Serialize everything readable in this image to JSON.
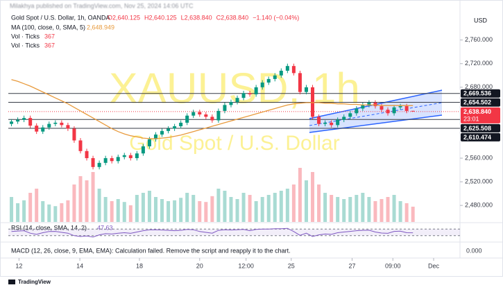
{
  "header": {
    "published": "Milakhya published on TradingView.com, Nov 25, 2024 14:06 UTC",
    "brand": "TradingView"
  },
  "chart_data": {
    "type": "candlestick",
    "title": "Gold Spot / U.S. Dollar, 1h, OANDA",
    "ohlc_legend": [
      "O2,640.125",
      "H2,640.125",
      "L2,638.840",
      "C2,638.840",
      "−1.140 (−0.04%)"
    ],
    "watermark": "XAUUSD, 1h",
    "watermark_subtitle": "Gold Spot / U.S. Dollar",
    "currency": "USD",
    "up_color": "#089981",
    "down_color": "#f23645",
    "categories": [
      null,
      null,
      null,
      null,
      null,
      null,
      null,
      null,
      null,
      null,
      null,
      null,
      null,
      null,
      null,
      null,
      null,
      null,
      null,
      null,
      null,
      null,
      null,
      null,
      null,
      null,
      null,
      null,
      null,
      null,
      null,
      null,
      null,
      null,
      null,
      null,
      null,
      null,
      null,
      null,
      null,
      null,
      null,
      null,
      null,
      null,
      null,
      null,
      null,
      null,
      null,
      null,
      null,
      null,
      null,
      null,
      null,
      null,
      null,
      null,
      null,
      null,
      null,
      null,
      null
    ],
    "open": [
      2618,
      2622,
      2625,
      2628,
      2615,
      2605,
      2612,
      2618,
      2620,
      2616,
      2610,
      2590,
      2572,
      2560,
      2545,
      2552,
      2560,
      2555,
      2562,
      2565,
      2560,
      2568,
      2580,
      2592,
      2600,
      2606,
      2610,
      2614,
      2620,
      2632,
      2638,
      2634,
      2630,
      2624,
      2640,
      2650,
      2655,
      2662,
      2670,
      2668,
      2680,
      2688,
      2694,
      2700,
      2708,
      2716,
      2704,
      2672,
      2680,
      2630,
      2618,
      2620,
      2616,
      2625,
      2630,
      2636,
      2644,
      2650,
      2654,
      2648,
      2642,
      2636,
      2646,
      2648,
      2640.125
    ],
    "high": [
      2626,
      2629,
      2632,
      2632,
      2619,
      2616,
      2622,
      2624,
      2624,
      2620,
      2614,
      2594,
      2576,
      2564,
      2556,
      2564,
      2564,
      2566,
      2569,
      2569,
      2572,
      2584,
      2596,
      2604,
      2610,
      2614,
      2618,
      2624,
      2636,
      2642,
      2642,
      2638,
      2634,
      2644,
      2654,
      2659,
      2666,
      2674,
      2674,
      2684,
      2692,
      2698,
      2704,
      2712,
      2720,
      2720,
      2708,
      2684,
      2684,
      2634,
      2624,
      2624,
      2629,
      2634,
      2640,
      2648,
      2654,
      2658,
      2658,
      2652,
      2646,
      2650,
      2652,
      2652,
      2640.125
    ],
    "low": [
      2614,
      2618,
      2621,
      2611,
      2601,
      2601,
      2608,
      2614,
      2612,
      2606,
      2586,
      2568,
      2556,
      2541,
      2541,
      2548,
      2551,
      2551,
      2558,
      2556,
      2556,
      2564,
      2576,
      2588,
      2596,
      2602,
      2606,
      2610,
      2616,
      2628,
      2630,
      2626,
      2620,
      2620,
      2636,
      2646,
      2651,
      2658,
      2664,
      2664,
      2676,
      2684,
      2690,
      2696,
      2704,
      2700,
      2668,
      2668,
      2626,
      2614,
      2614,
      2612,
      2612,
      2621,
      2626,
      2632,
      2640,
      2646,
      2644,
      2638,
      2632,
      2632,
      2642,
      2636,
      2638.84
    ],
    "close": [
      2622,
      2625,
      2628,
      2615,
      2605,
      2612,
      2618,
      2620,
      2616,
      2610,
      2590,
      2572,
      2560,
      2545,
      2552,
      2560,
      2555,
      2562,
      2565,
      2560,
      2568,
      2580,
      2592,
      2600,
      2606,
      2610,
      2614,
      2620,
      2632,
      2638,
      2634,
      2630,
      2624,
      2640,
      2650,
      2655,
      2662,
      2670,
      2668,
      2680,
      2688,
      2694,
      2700,
      2708,
      2716,
      2704,
      2672,
      2680,
      2630,
      2618,
      2620,
      2616,
      2625,
      2630,
      2636,
      2644,
      2650,
      2654,
      2648,
      2642,
      2636,
      2646,
      2648,
      2640,
      2638.84
    ],
    "ylim": [
      2452,
      2816
    ],
    "yticks": [
      {
        "value": 2760,
        "label": "2,760.000"
      },
      {
        "value": 2720,
        "label": "2,720.000"
      },
      {
        "value": 2680,
        "label": "2,680.000"
      },
      {
        "value": 2560,
        "label": "2,560.000"
      },
      {
        "value": 2520,
        "label": "2,520.000"
      },
      {
        "value": 2480,
        "label": "2,480.000"
      }
    ],
    "xlim": [
      -0.5,
      71.5
    ],
    "xticks": [
      {
        "value": 1.2,
        "label": "12"
      },
      {
        "value": 10.9,
        "label": "14"
      },
      {
        "value": 20.4,
        "label": "18"
      },
      {
        "value": 30,
        "label": "20"
      },
      {
        "value": 37.4,
        "label": "12:00"
      },
      {
        "value": 44.6,
        "label": "25"
      },
      {
        "value": 54.3,
        "label": "27"
      },
      {
        "value": 60.8,
        "label": "09:00"
      },
      {
        "value": 67.3,
        "label": "Dec"
      }
    ],
    "ma": {
      "label": "MA (100, close, 0, SMA, 5)",
      "value_label": "2,648.949",
      "color": "#e89a3c",
      "values": [
        2693,
        2690,
        2686,
        2682,
        2677,
        2672,
        2667,
        2662,
        2657,
        2652,
        2646,
        2640,
        2634,
        2628,
        2622,
        2616,
        2610,
        2605,
        2601,
        2598,
        2596,
        2594,
        2593,
        2593,
        2594,
        2595,
        2597,
        2599,
        2602,
        2605,
        2608,
        2611,
        2614,
        2617,
        2620,
        2623,
        2626,
        2629,
        2632,
        2635,
        2638,
        2641,
        2644,
        2647,
        2650,
        2652,
        2653,
        2654,
        2654,
        2654,
        2653,
        2653,
        2652,
        2652,
        2651,
        2651,
        2650,
        2650,
        2650,
        2649,
        2649,
        2649,
        2649,
        2649,
        2648.949
      ]
    },
    "volume": {
      "legend": [
        {
          "label": "Vol · Ticks",
          "value": 367
        },
        {
          "label": "Vol · Ticks",
          "value": 367
        }
      ],
      "vlim": [
        0,
        1500
      ],
      "values": [
        600,
        450,
        520,
        700,
        800,
        500,
        420,
        380,
        450,
        520,
        900,
        1100,
        1000,
        1200,
        800,
        600,
        500,
        550,
        480,
        400,
        650,
        700,
        750,
        600,
        550,
        500,
        520,
        580,
        700,
        650,
        500,
        480,
        620,
        800,
        750,
        600,
        550,
        700,
        650,
        500,
        600,
        650,
        700,
        750,
        800,
        900,
        1300,
        1000,
        1200,
        900,
        700,
        650,
        600,
        550,
        600,
        650,
        700,
        600,
        500,
        550,
        600,
        650,
        500,
        450,
        367
      ]
    },
    "levels": [
      {
        "value": 2669.536,
        "label": "2,669.536"
      },
      {
        "value": 2654.502,
        "label": "2,654.502"
      },
      {
        "value": 2625.508,
        "label": "2,625.508"
      },
      {
        "value": 2610.474,
        "label": "2,610.474"
      }
    ],
    "current": {
      "value": 2638.84,
      "label": "2,638.840",
      "countdown": "23:01"
    },
    "rsi": {
      "label": "RSI (14, close, SMA, 14, 2)",
      "value": 47.63,
      "color": "#7e57c2",
      "ylim": [
        0,
        100
      ],
      "bands": [
        70,
        30
      ],
      "values": [
        55,
        58,
        60,
        45,
        38,
        48,
        55,
        56,
        50,
        45,
        30,
        25,
        28,
        22,
        35,
        42,
        40,
        45,
        48,
        44,
        52,
        60,
        65,
        66,
        64,
        62,
        60,
        62,
        68,
        66,
        55,
        50,
        45,
        62,
        66,
        64,
        66,
        68,
        60,
        68,
        70,
        70,
        72,
        72,
        74,
        55,
        32,
        45,
        25,
        35,
        40,
        38,
        48,
        52,
        56,
        60,
        62,
        63,
        52,
        46,
        44,
        56,
        57,
        48,
        47.63
      ]
    },
    "macd": {
      "label": "MACD (12, 26, close, 9, EMA, EMA): Calculation failed. Remove the script and reapply it to the chart.",
      "value_label": "0.000"
    }
  }
}
